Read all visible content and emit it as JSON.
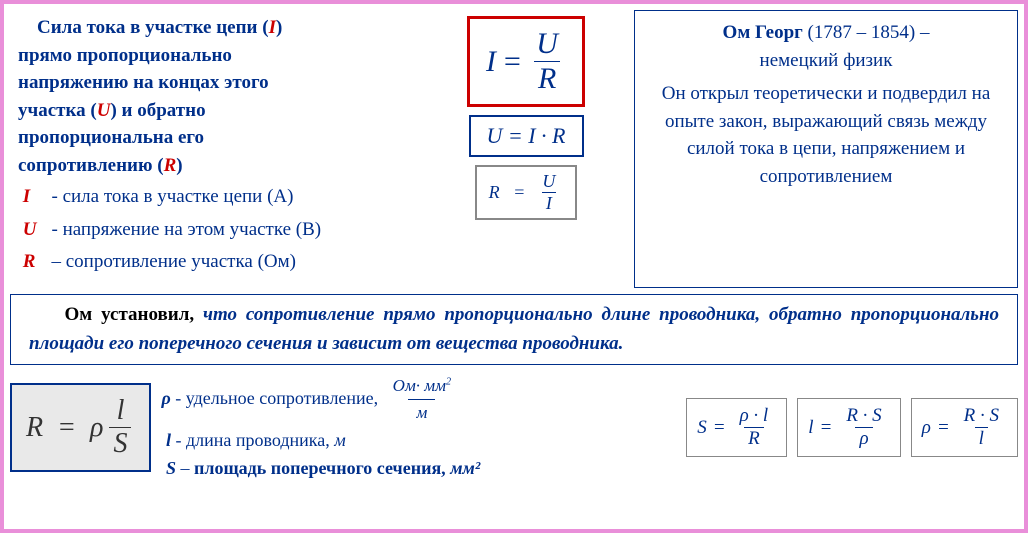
{
  "colors": {
    "outer_border": "#e98fd9",
    "accent_blue": "#002f8a",
    "accent_red": "#cc0000",
    "grey_box_bg": "#e9e9e9",
    "grey_border": "#888888"
  },
  "left": {
    "title_part1": "Сила тока  в участке цепи (",
    "title_sym": "I",
    "title_part2": ")",
    "body_line1": "прямо пропорционально",
    "body_line2": "напряжению  на концах этого",
    "body_line3a": "участка (",
    "body_line3_sym": "U",
    "body_line3b": ") и обратно",
    "body_line4": "пропорциональна его",
    "body_line5a": "сопротивлению (",
    "body_line5_sym": "R",
    "body_line5b": ")",
    "defs": [
      {
        "sym": "I",
        "sep": " -   ",
        "text": "сила тока в участке цепи (A)"
      },
      {
        "sym": "U",
        "sep": " -  ",
        "text": "напряжение на этом участке (B)"
      },
      {
        "sym": "R",
        "sep": " –  ",
        "text": "сопротивление участка (Ом)"
      }
    ]
  },
  "formulas": {
    "main": {
      "lhs": "I",
      "num": "U",
      "den": "R"
    },
    "u_eq": "U  =  I  ·  R",
    "r_eq": {
      "lhs": "R",
      "num": "U",
      "den": "I"
    }
  },
  "bio": {
    "name": "Ом Георг",
    "dates": "  (1787 – 1854) –",
    "role": "немецкий физик",
    "text": "Он открыл теоретически и подвердил на опыте закон, выражающий связь между силой тока в цепи, напряжением и сопротивлением"
  },
  "banner": {
    "lead": "Ом  установил,",
    "rest": " что сопротивление прямо пропорционально длине проводника, обратно пропорционально площади его поперечного сечения и зависит от вещества проводника."
  },
  "resistance": {
    "box": {
      "lhs": "R",
      "eq": "=",
      "rho": "ρ",
      "num": "l",
      "den": "S"
    },
    "defs": {
      "rho_sym": "ρ",
      "rho_sep": " -  ",
      "rho_text": "удельное сопротивление,",
      "unit_num": "Ом· мм",
      "unit_sup": "2",
      "unit_den": "м",
      "l_sym": "l",
      "l_sep": "  - ",
      "l_text": "длина проводника,  ",
      "l_unit": "м",
      "s_sym": "S",
      "s_sep": " – ",
      "s_text": "площадь поперечного сечения,  ",
      "s_unit": "мм²"
    },
    "small_formulas": [
      {
        "lhs": "S",
        "num": "ρ · l",
        "den": "R"
      },
      {
        "lhs": "l",
        "num": "R · S",
        "den": "ρ"
      },
      {
        "lhs": "ρ",
        "num": "R · S",
        "den": "l"
      }
    ]
  }
}
